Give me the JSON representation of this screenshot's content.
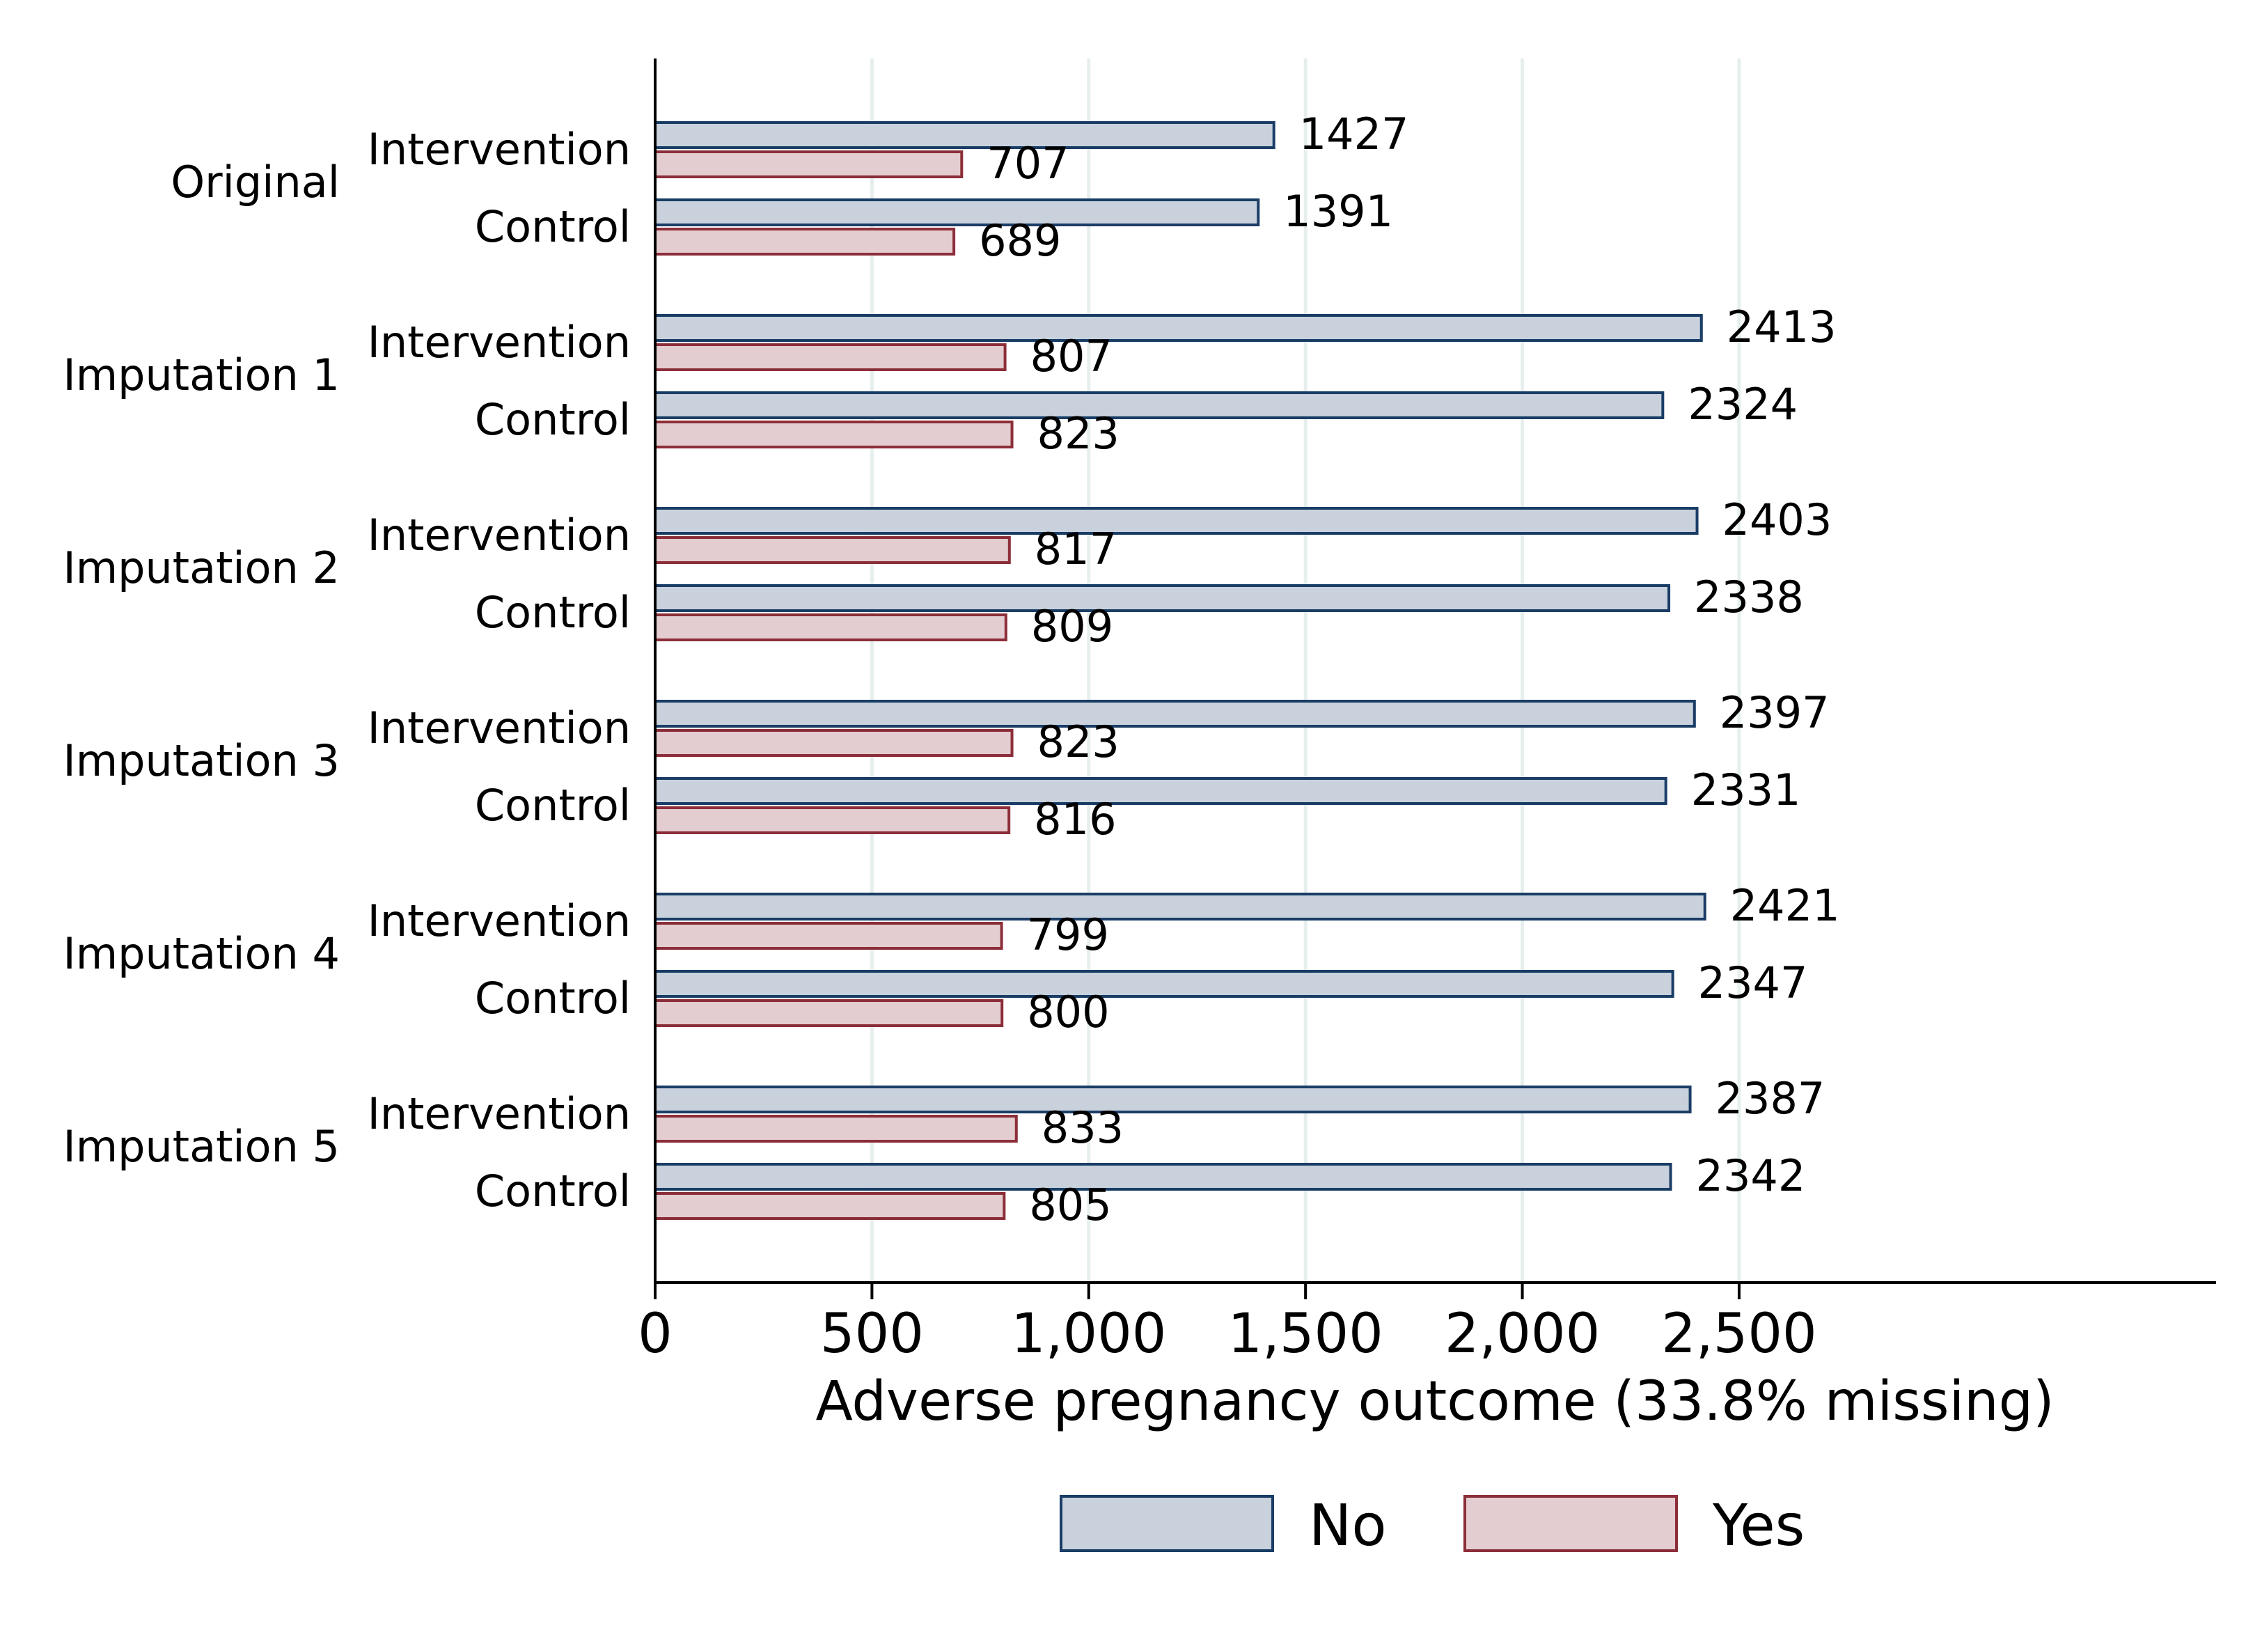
{
  "chart_data": {
    "type": "bar",
    "orientation": "horizontal",
    "xlabel": "Adverse pregnancy outcome (33.8% missing)",
    "xlim": [
      0,
      3600
    ],
    "xticks": [
      0,
      500,
      1000,
      1500,
      2000,
      2500
    ],
    "xtick_labels": [
      "0",
      "500",
      "1,000",
      "1,500",
      "2,000",
      "2,500"
    ],
    "grid": "vertical",
    "legend_position": "bottom",
    "series": [
      {
        "name": "No",
        "fill": "#c8d1dc",
        "stroke": "#1a3d66"
      },
      {
        "name": "Yes",
        "fill": "#e3cdd0",
        "stroke": "#8c2e39"
      }
    ],
    "groups": [
      {
        "label": "Original",
        "rows": [
          {
            "label": "Intervention",
            "values": [
              1427,
              707
            ]
          },
          {
            "label": "Control",
            "values": [
              1391,
              689
            ]
          }
        ]
      },
      {
        "label": "Imputation 1",
        "rows": [
          {
            "label": "Intervention",
            "values": [
              2413,
              807
            ]
          },
          {
            "label": "Control",
            "values": [
              2324,
              823
            ]
          }
        ]
      },
      {
        "label": "Imputation 2",
        "rows": [
          {
            "label": "Intervention",
            "values": [
              2403,
              817
            ]
          },
          {
            "label": "Control",
            "values": [
              2338,
              809
            ]
          }
        ]
      },
      {
        "label": "Imputation 3",
        "rows": [
          {
            "label": "Intervention",
            "values": [
              2397,
              823
            ]
          },
          {
            "label": "Control",
            "values": [
              2331,
              816
            ]
          }
        ]
      },
      {
        "label": "Imputation 4",
        "rows": [
          {
            "label": "Intervention",
            "values": [
              2421,
              799
            ]
          },
          {
            "label": "Control",
            "values": [
              2347,
              800
            ]
          }
        ]
      },
      {
        "label": "Imputation 5",
        "rows": [
          {
            "label": "Intervention",
            "values": [
              2387,
              833
            ]
          },
          {
            "label": "Control",
            "values": [
              2342,
              805
            ]
          }
        ]
      }
    ]
  }
}
